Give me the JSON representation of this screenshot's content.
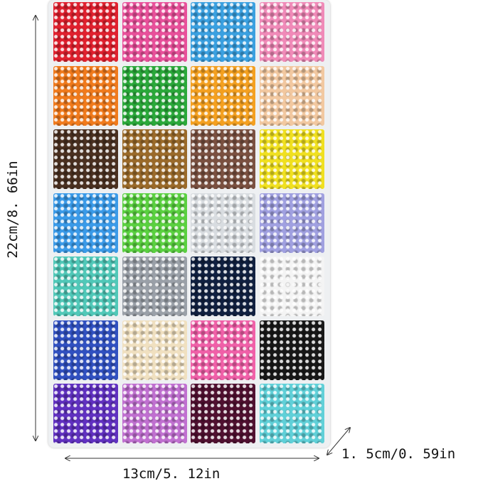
{
  "dimensions": {
    "height": "22cm/8. 66in",
    "width": "13cm/5. 12in",
    "depth": "1. 5cm/0. 59in"
  }
}
